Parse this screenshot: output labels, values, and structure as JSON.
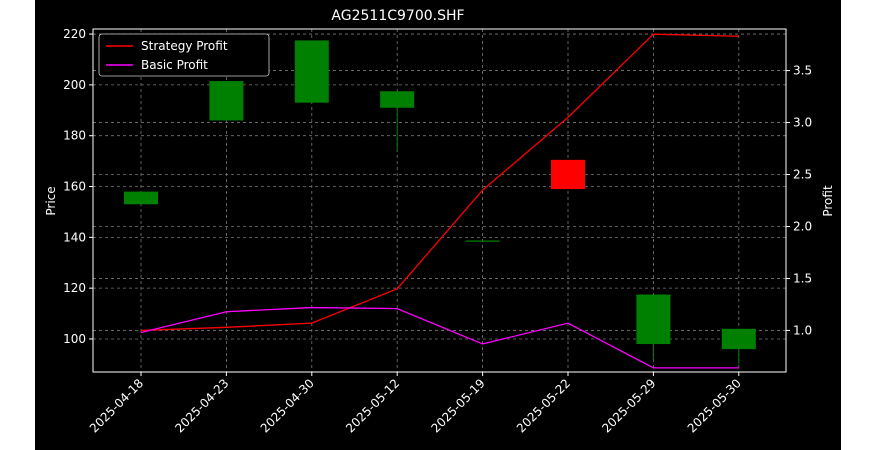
{
  "chart_data": {
    "type": "candlestick",
    "title": "AG2511C9700.SHF",
    "xlabel": "",
    "ylabel": "Price",
    "y2label": "Profit",
    "categories": [
      "2025-04-18",
      "2025-04-23",
      "2025-04-30",
      "2025-05-12",
      "2025-05-19",
      "2025-05-22",
      "2025-05-29",
      "2025-05-30"
    ],
    "ylim": [
      87,
      222
    ],
    "y2lim": [
      0.6,
      3.9
    ],
    "yticks": [
      100,
      120,
      140,
      160,
      180,
      200,
      220
    ],
    "y2ticks": [
      1.0,
      1.5,
      2.0,
      2.5,
      3.0,
      3.5
    ],
    "candles": [
      {
        "open": 153,
        "close": 158,
        "high": 158,
        "low": 153
      },
      {
        "open": 186,
        "close": 201.5,
        "high": 201.5,
        "low": 186
      },
      {
        "open": 193,
        "close": 217.5,
        "high": 217.5,
        "low": 193
      },
      {
        "open": 191,
        "close": 197.5,
        "high": 197.5,
        "low": 174
      },
      {
        "open": 138.5,
        "close": 138.5,
        "high": 138.5,
        "low": 138.5
      },
      {
        "open": 170.5,
        "close": 159,
        "high": 170.5,
        "low": 159
      },
      {
        "open": 98,
        "close": 117.5,
        "high": 117.5,
        "low": 92
      },
      {
        "open": 96,
        "close": 104,
        "high": 104,
        "low": 90
      }
    ],
    "series": [
      {
        "name": "Strategy Profit",
        "color": "#ff0000",
        "values": [
          1.0,
          1.03,
          1.07,
          1.4,
          2.35,
          3.05,
          3.85,
          3.83
        ]
      },
      {
        "name": "Basic Profit",
        "color": "#ff00ff",
        "values": [
          0.98,
          1.18,
          1.22,
          1.21,
          0.87,
          1.07,
          0.64,
          0.64
        ]
      }
    ],
    "up_color": "#008000",
    "down_color": "#ff0000",
    "legend_position": "upper-left",
    "grid": true
  }
}
